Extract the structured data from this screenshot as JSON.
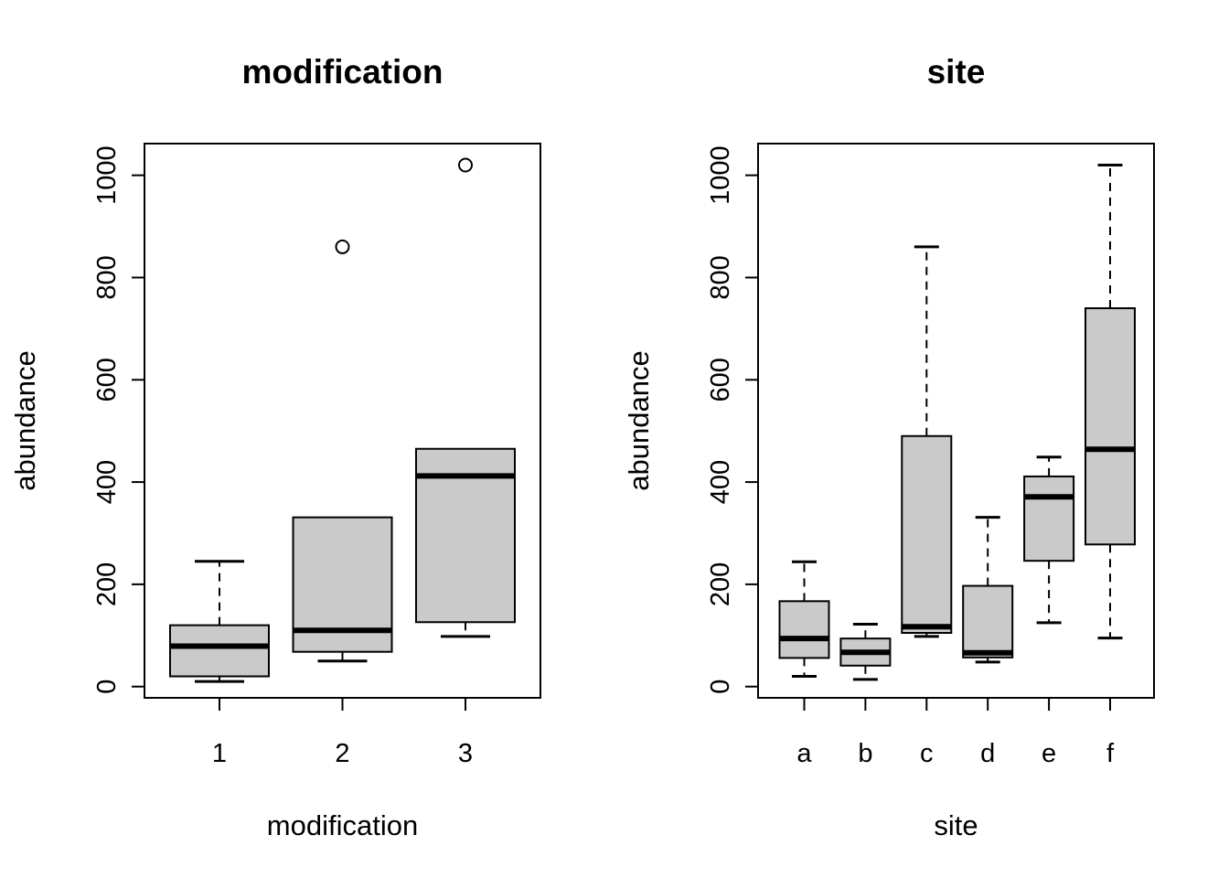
{
  "chart_data": [
    {
      "type": "boxplot",
      "title": "modification",
      "xlabel": "modification",
      "ylabel": "abundance",
      "categories": [
        "1",
        "2",
        "3"
      ],
      "y_ticks": [
        0,
        200,
        400,
        600,
        800,
        1000
      ],
      "ylim": [
        -22,
        1062
      ],
      "grid": false,
      "legend": "none",
      "groups": [
        {
          "category": "1",
          "whisker_low": 10,
          "q1": 20,
          "median": 79,
          "q3": 120,
          "whisker_high": 245,
          "outliers": []
        },
        {
          "category": "2",
          "whisker_low": 50,
          "q1": 68,
          "median": 110,
          "q3": 331,
          "whisker_high": null,
          "outliers": [
            860
          ]
        },
        {
          "category": "3",
          "whisker_low": 98,
          "q1": 126,
          "median": 412,
          "q3": 465,
          "whisker_high": null,
          "outliers": [
            1020
          ]
        }
      ]
    },
    {
      "type": "boxplot",
      "title": "site",
      "xlabel": "site",
      "ylabel": "abundance",
      "categories": [
        "a",
        "b",
        "c",
        "d",
        "e",
        "f"
      ],
      "y_ticks": [
        0,
        200,
        400,
        600,
        800,
        1000
      ],
      "ylim": [
        -22,
        1062
      ],
      "grid": false,
      "legend": "none",
      "groups": [
        {
          "category": "a",
          "whisker_low": 20,
          "q1": 56,
          "median": 94,
          "q3": 167,
          "whisker_high": 244,
          "outliers": []
        },
        {
          "category": "b",
          "whisker_low": 14,
          "q1": 41,
          "median": 67,
          "q3": 94,
          "whisker_high": 122,
          "outliers": []
        },
        {
          "category": "c",
          "whisker_low": 98,
          "q1": 105,
          "median": 117,
          "q3": 490,
          "whisker_high": 860,
          "outliers": []
        },
        {
          "category": "d",
          "whisker_low": 48,
          "q1": 57,
          "median": 66,
          "q3": 197,
          "whisker_high": 331,
          "outliers": []
        },
        {
          "category": "e",
          "whisker_low": 125,
          "q1": 246,
          "median": 371,
          "q3": 411,
          "whisker_high": 449,
          "outliers": []
        },
        {
          "category": "f",
          "whisker_low": 95,
          "q1": 278,
          "median": 464,
          "q3": 740,
          "whisker_high": 1020,
          "outliers": []
        }
      ]
    }
  ],
  "style": {
    "background": "#ffffff",
    "box_fill": "#cacaca",
    "stroke_color": "#000000"
  }
}
